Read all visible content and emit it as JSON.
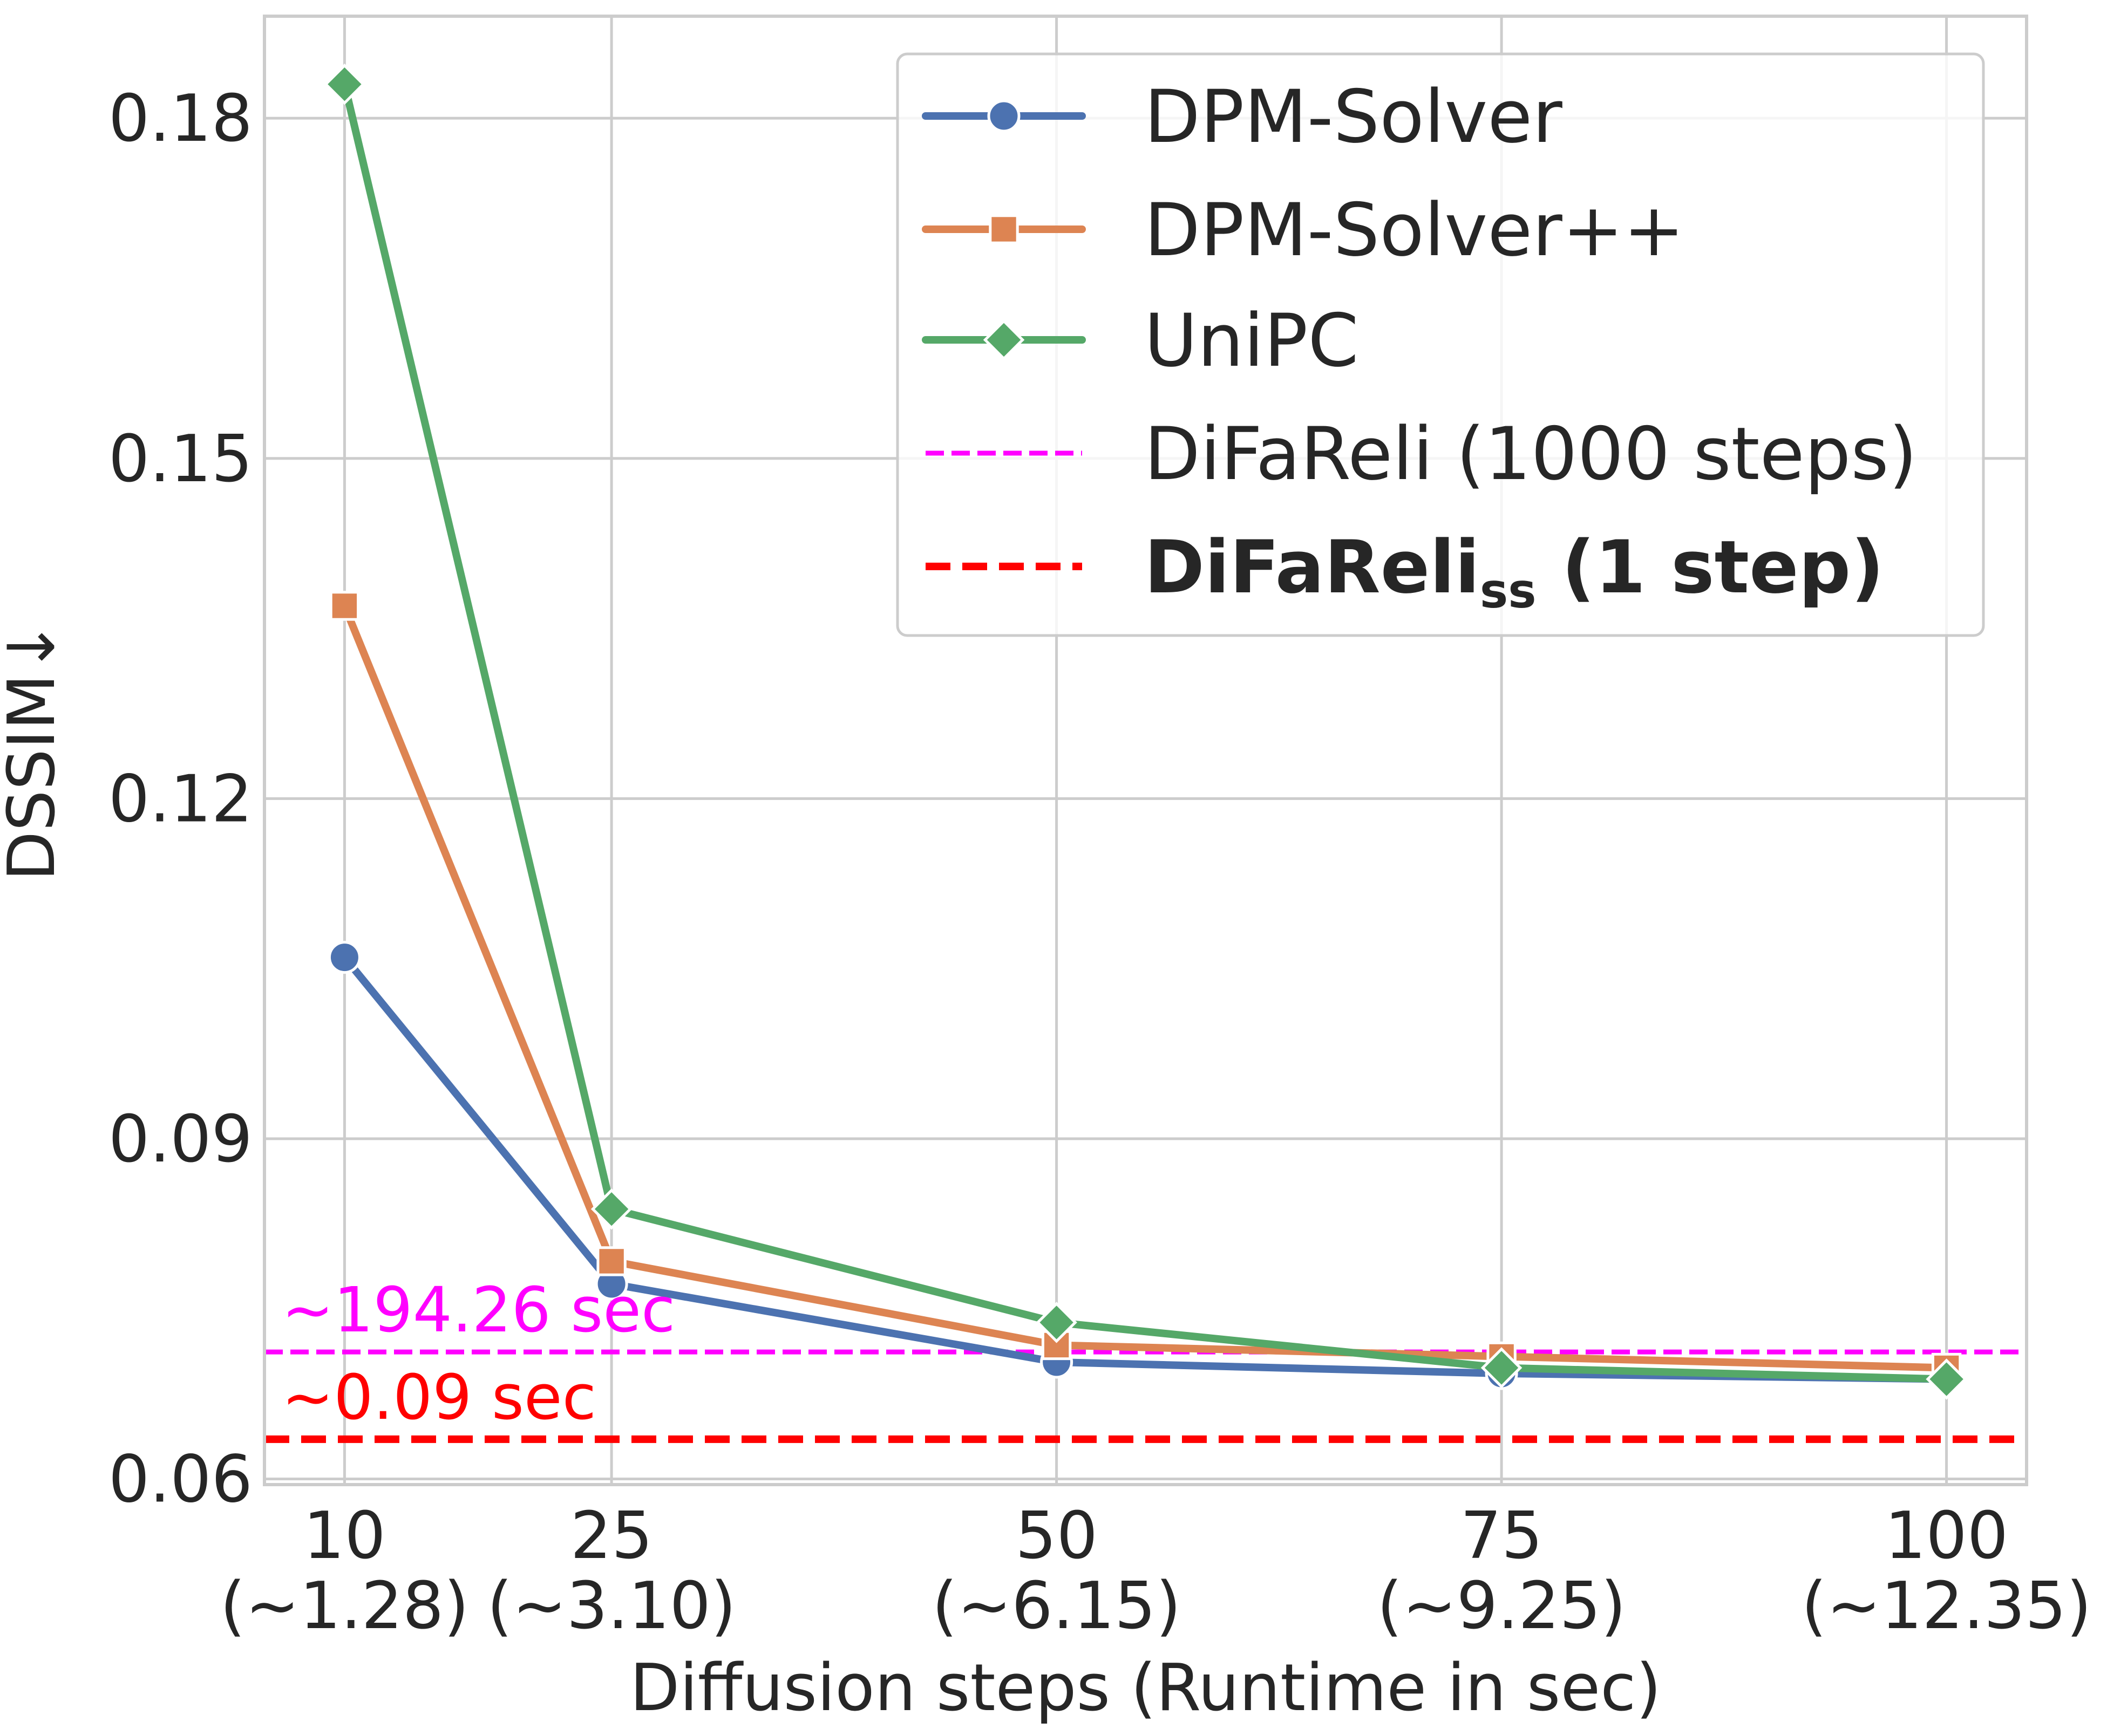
{
  "chart_data": {
    "type": "line",
    "xlabel": "Diffusion steps (Runtime in sec)",
    "ylabel": "DSSIM↓",
    "categories": [
      "10",
      "25",
      "50",
      "75",
      "100"
    ],
    "category_sublabels": [
      "(~1.28)",
      "(~3.10)",
      "(~6.15)",
      "(~9.25)",
      "(~12.35)"
    ],
    "x": [
      10,
      25,
      50,
      75,
      100
    ],
    "xlim": [
      5.5,
      104.5
    ],
    "ylim": [
      0.0595,
      0.189
    ],
    "yticks": [
      "0.06",
      "0.09",
      "0.12",
      "0.15",
      "0.18"
    ],
    "grid": true,
    "legend_position": "top-right",
    "series": [
      {
        "name": "DPM-Solver",
        "color": "#4c72b0",
        "marker": "circle",
        "values": [
          0.106,
          0.0772,
          0.0703,
          0.0693,
          0.0688
        ]
      },
      {
        "name": "DPM-Solver++",
        "color": "#dd8452",
        "marker": "square",
        "values": [
          0.137,
          0.0792,
          0.0718,
          0.0708,
          0.0698
        ]
      },
      {
        "name": "UniPC",
        "color": "#55a868",
        "marker": "diamond",
        "values": [
          0.183,
          0.0838,
          0.0738,
          0.0698,
          0.0688
        ]
      }
    ],
    "reference_lines": [
      {
        "name": "DiFaReli (1000 steps)",
        "value": 0.0712,
        "color": "#ff00ff",
        "label": "~194.26 sec"
      },
      {
        "name_main": "DiFaReli",
        "name_sub": "ss",
        "name_rest": " (1 step)",
        "value": 0.0635,
        "color": "#ff0000",
        "label": "~0.09 sec"
      }
    ]
  }
}
